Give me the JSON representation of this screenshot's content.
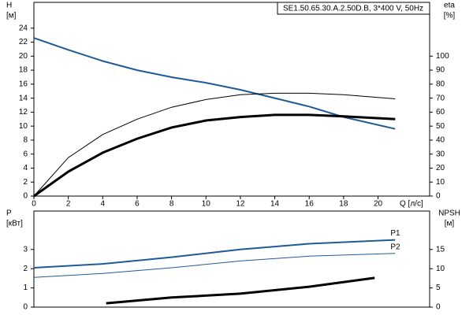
{
  "chart_data": [
    {
      "type": "line",
      "title": "SE1.50.65.30.A.2.50D.B, 3*400 V, 50Hz",
      "ylabel": [
        "H",
        "[м]"
      ],
      "y2label": [
        "eta",
        "[%]"
      ],
      "xlabel": "Q [л/с]",
      "xlim": [
        0,
        23
      ],
      "xticks": [
        0,
        2,
        4,
        6,
        8,
        10,
        12,
        14,
        16,
        18,
        20
      ],
      "ylim": [
        0,
        26
      ],
      "yticks": [
        0,
        2,
        4,
        6,
        8,
        10,
        12,
        14,
        16,
        18,
        20,
        22,
        24
      ],
      "y2lim": [
        0,
        130
      ],
      "y2ticks": [
        0,
        10,
        20,
        30,
        40,
        50,
        60,
        70,
        80,
        90,
        100
      ],
      "series": [
        {
          "color": "#1f5a96",
          "line_width": 2,
          "x": [
            0,
            2,
            4,
            6,
            8,
            10,
            12,
            14,
            16,
            18,
            21
          ],
          "values": [
            22.6,
            20.9,
            19.3,
            18.0,
            17.0,
            16.2,
            15.2,
            14.0,
            12.8,
            11.3,
            9.6
          ]
        },
        {
          "color": "#000000",
          "line_width": 1,
          "axis": "y2",
          "x": [
            0,
            2,
            4,
            6,
            8,
            10,
            12,
            14,
            16,
            18,
            21
          ],
          "values": [
            0,
            27.5,
            44,
            55,
            63.5,
            69,
            72.5,
            73.5,
            73.5,
            72.5,
            69.5
          ]
        },
        {
          "color": "#000000",
          "line_width": 3,
          "axis": "y2",
          "x": [
            0,
            2,
            4,
            6,
            8,
            10,
            12,
            14,
            16,
            18,
            21
          ],
          "values": [
            0,
            17.5,
            31,
            41,
            49,
            54,
            56.5,
            58,
            58,
            57,
            55
          ]
        }
      ]
    },
    {
      "type": "line",
      "ylabel": [
        "P",
        "[кВт]"
      ],
      "y2label": [
        "NPSH",
        "[м]"
      ],
      "xlim": [
        0,
        23
      ],
      "ylim": [
        0,
        5
      ],
      "yticks": [
        0,
        1,
        2,
        3
      ],
      "y2lim": [
        0,
        25
      ],
      "y2ticks": [
        0,
        5,
        10,
        15
      ],
      "series": [
        {
          "name": "P1",
          "color": "#1f5a96",
          "line_width": 2,
          "x": [
            0,
            4,
            8,
            12,
            16,
            21
          ],
          "values": [
            2.05,
            2.25,
            2.6,
            3.0,
            3.3,
            3.5
          ]
        },
        {
          "name": "P2",
          "color": "#1f5a96",
          "line_width": 1,
          "x": [
            0,
            4,
            8,
            12,
            16,
            21
          ],
          "values": [
            1.55,
            1.75,
            2.05,
            2.4,
            2.65,
            2.8
          ]
        },
        {
          "color": "#000000",
          "line_width": 3,
          "axis": "y2",
          "x": [
            4.2,
            8,
            12,
            16,
            19.8
          ],
          "values": [
            1,
            2.5,
            3.5,
            5.3,
            7.6
          ]
        }
      ]
    }
  ]
}
